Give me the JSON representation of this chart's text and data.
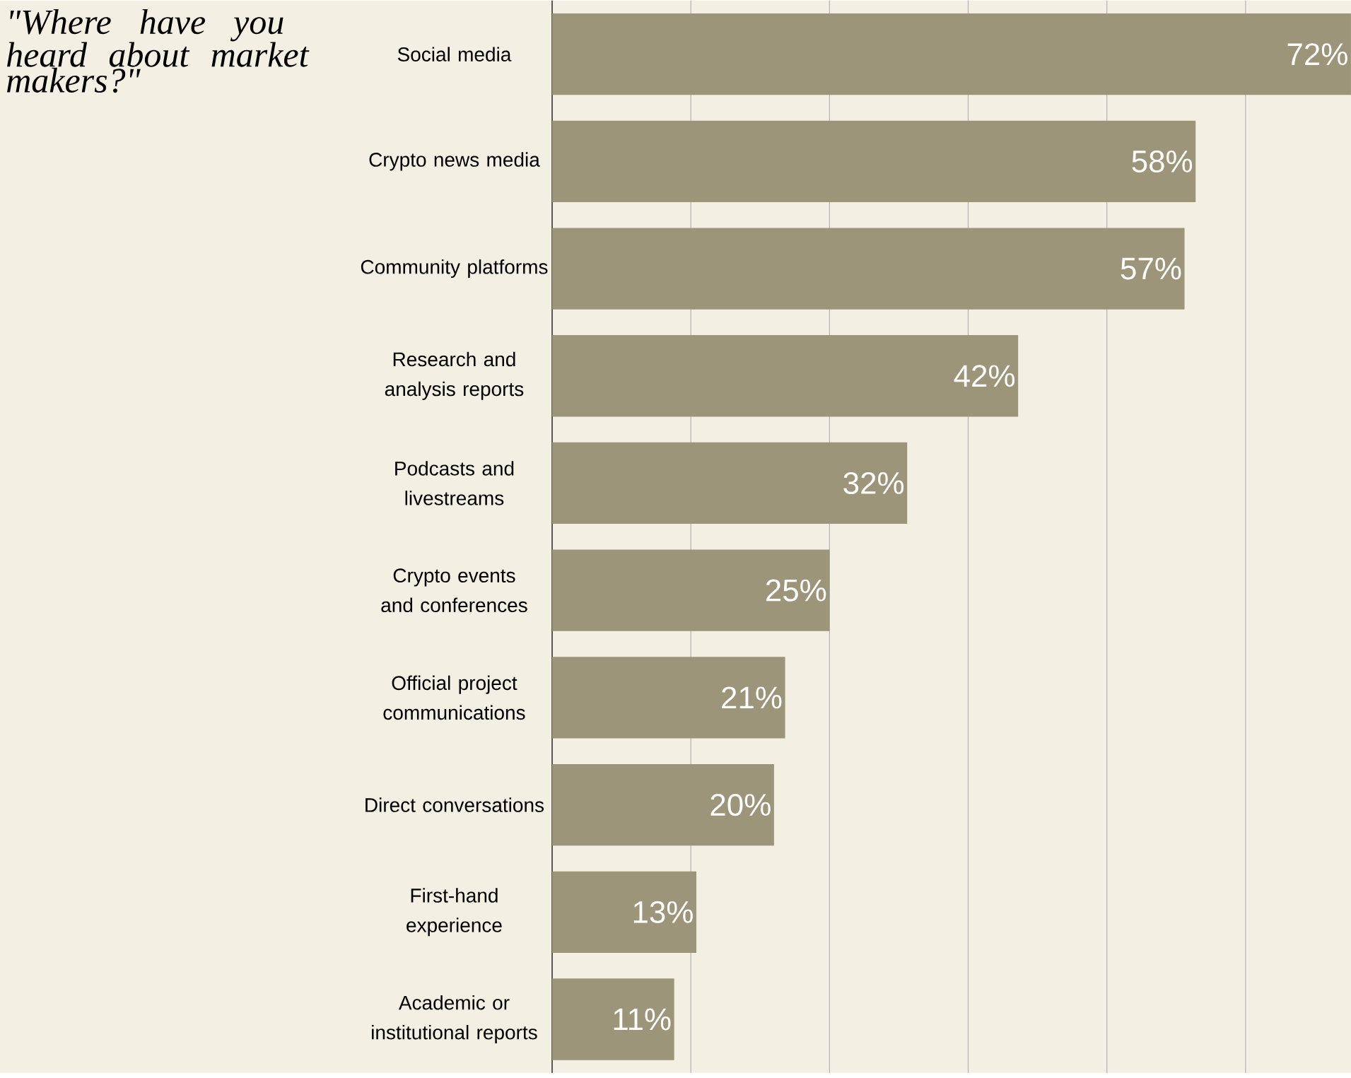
{
  "chart_data": {
    "type": "bar",
    "orientation": "horizontal",
    "title": "\"Where have you heard about market makers?\"",
    "categories": [
      "Social media",
      "Crypto news media",
      "Community platforms",
      "Research and analysis reports",
      "Podcasts and livestreams",
      "Crypto events and conferences",
      "Official project communications",
      "Direct conversations",
      "First-hand experience",
      "Academic or institutional reports"
    ],
    "values": [
      72,
      58,
      57,
      42,
      32,
      25,
      21,
      20,
      13,
      11
    ],
    "value_labels": [
      "72%",
      "58%",
      "57%",
      "42%",
      "32%",
      "25%",
      "21%",
      "20%",
      "13%",
      "11%"
    ],
    "color": "#9c957a",
    "xlim": [
      0,
      72
    ],
    "xticks": [
      {
        "value": 12.5,
        "label": null
      },
      {
        "value": 25,
        "label": null
      },
      {
        "value": 37.5,
        "label": null
      },
      {
        "value": 50,
        "label": null
      },
      {
        "value": 62.5,
        "label": null
      }
    ],
    "grid": "x"
  }
}
